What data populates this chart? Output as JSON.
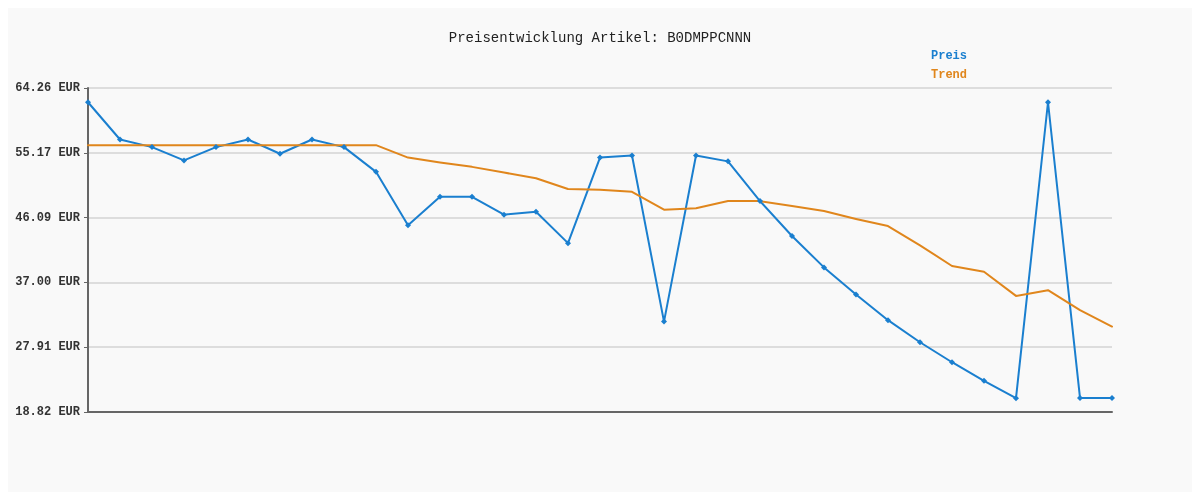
{
  "chart_data": {
    "type": "line",
    "title": "Preisentwicklung Artikel: B0DMPPCNNN",
    "categories": [
      null,
      null,
      null,
      null,
      null,
      null,
      null,
      null,
      null,
      null,
      null,
      null,
      null,
      null,
      null,
      null,
      null,
      null,
      null,
      null,
      null,
      null,
      null,
      null,
      null,
      null,
      null,
      null,
      null,
      null,
      null,
      null,
      null
    ],
    "series": [
      {
        "name": "Preis",
        "color": "#1a7fcf",
        "marker": "diamond",
        "values": [
          62.26,
          57.04,
          55.97,
          54.1,
          55.97,
          57.04,
          55.04,
          57.04,
          55.97,
          52.5,
          45.0,
          49.0,
          49.0,
          46.5,
          46.9,
          42.5,
          54.5,
          54.8,
          31.5,
          54.8,
          53.97,
          48.4,
          43.5,
          39.1,
          35.3,
          31.7,
          28.6,
          25.8,
          23.2,
          20.76,
          62.26,
          20.8,
          20.8
        ]
      },
      {
        "name": "Trend",
        "color": "#e0861c",
        "marker": "none",
        "values": [
          56.24,
          56.24,
          56.24,
          56.24,
          56.24,
          56.24,
          56.24,
          56.24,
          56.24,
          56.24,
          54.5,
          53.8,
          53.2,
          52.4,
          51.6,
          50.1,
          50.0,
          49.7,
          47.2,
          47.4,
          48.4,
          48.4,
          47.7,
          47.0,
          45.9,
          44.9,
          42.2,
          39.3,
          38.5,
          35.1,
          35.9,
          33.1,
          30.8
        ]
      }
    ],
    "ylim": [
      18.82,
      64.26
    ],
    "yticks": [
      {
        "value": 18.82,
        "label": "18.82 EUR"
      },
      {
        "value": 27.91,
        "label": "27.91 EUR"
      },
      {
        "value": 37.0,
        "label": "37.00 EUR"
      },
      {
        "value": 46.09,
        "label": "46.09 EUR"
      },
      {
        "value": 55.17,
        "label": "55.17 EUR"
      },
      {
        "value": 64.26,
        "label": "64.26 EUR"
      }
    ],
    "grid": "y",
    "legend": "top right",
    "line_style": "solid"
  }
}
